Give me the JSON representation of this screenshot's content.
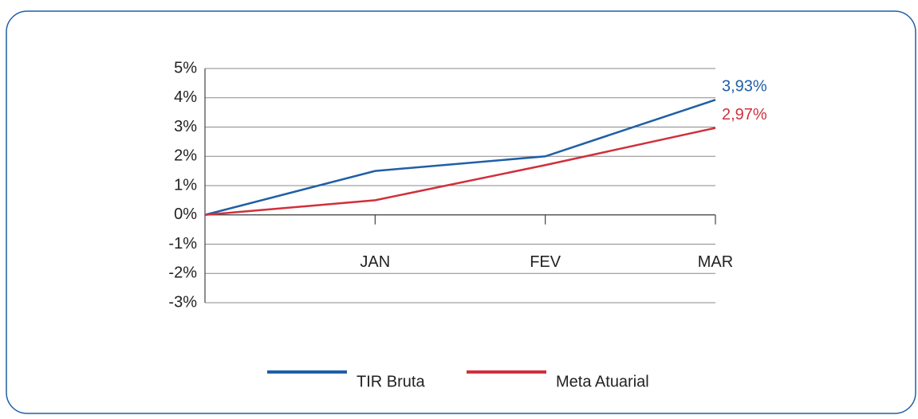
{
  "chart_data": {
    "type": "line",
    "categories": [
      null,
      "JAN",
      "FEV",
      "MAR"
    ],
    "series": [
      {
        "name": "TIR Bruta",
        "color": "#1f5fa6",
        "values": [
          0,
          1.5,
          2.0,
          3.93
        ],
        "value_labels": [
          null,
          null,
          null,
          "3,93%"
        ]
      },
      {
        "name": "Meta Atuarial",
        "color": "#d0303c",
        "values": [
          0,
          0.5,
          1.7,
          2.97
        ],
        "value_labels": [
          null,
          null,
          null,
          "2,97%"
        ]
      }
    ],
    "ylim": [
      -3,
      5
    ],
    "yticks": [
      {
        "value": -3,
        "label": "-3%"
      },
      {
        "value": -2,
        "label": "-2%"
      },
      {
        "value": -1,
        "label": "-1%"
      },
      {
        "value": 0,
        "label": "0%"
      },
      {
        "value": 1,
        "label": "1%"
      },
      {
        "value": 2,
        "label": "2%"
      },
      {
        "value": 3,
        "label": "3%"
      },
      {
        "value": 4,
        "label": "4%"
      },
      {
        "value": 5,
        "label": "5%"
      }
    ],
    "grid": true,
    "legend": "bottom"
  }
}
